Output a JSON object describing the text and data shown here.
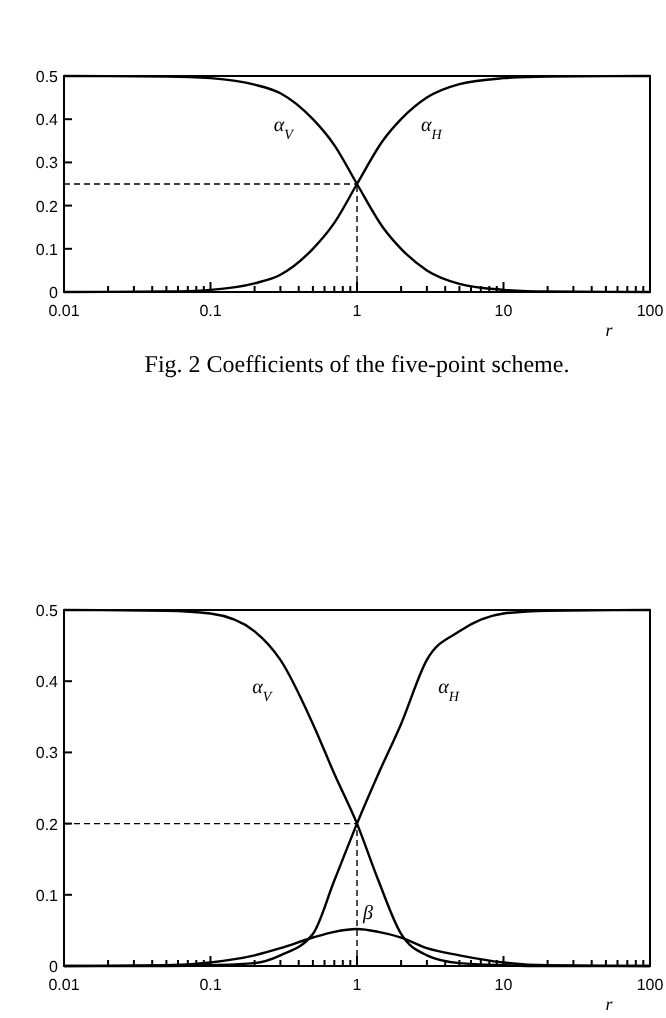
{
  "chart_data": [
    {
      "type": "line",
      "title": "Fig. 2  Coefficients of the five-point scheme.",
      "xlabel": "r",
      "log": "x",
      "xlim": [
        0.01,
        100
      ],
      "ylim": [
        0,
        0.5
      ],
      "xticks": [
        {
          "value": 0.01,
          "label": "0.01"
        },
        {
          "value": 0.02,
          "label": null
        },
        {
          "value": 0.03,
          "label": null
        },
        {
          "value": 0.04,
          "label": null
        },
        {
          "value": 0.05,
          "label": null
        },
        {
          "value": 0.06,
          "label": null
        },
        {
          "value": 0.07,
          "label": null
        },
        {
          "value": 0.08,
          "label": null
        },
        {
          "value": 0.09,
          "label": null
        },
        {
          "value": 0.1,
          "label": "0.1"
        },
        {
          "value": 0.2,
          "label": null
        },
        {
          "value": 0.3,
          "label": null
        },
        {
          "value": 0.4,
          "label": null
        },
        {
          "value": 0.5,
          "label": null
        },
        {
          "value": 0.6,
          "label": null
        },
        {
          "value": 0.7,
          "label": null
        },
        {
          "value": 0.8,
          "label": null
        },
        {
          "value": 0.9,
          "label": null
        },
        {
          "value": 1,
          "label": "1"
        },
        {
          "value": 2,
          "label": null
        },
        {
          "value": 3,
          "label": null
        },
        {
          "value": 4,
          "label": null
        },
        {
          "value": 5,
          "label": null
        },
        {
          "value": 6,
          "label": null
        },
        {
          "value": 7,
          "label": null
        },
        {
          "value": 8,
          "label": null
        },
        {
          "value": 9,
          "label": null
        },
        {
          "value": 10,
          "label": "10"
        },
        {
          "value": 20,
          "label": null
        },
        {
          "value": 30,
          "label": null
        },
        {
          "value": 40,
          "label": null
        },
        {
          "value": 50,
          "label": null
        },
        {
          "value": 60,
          "label": null
        },
        {
          "value": 70,
          "label": null
        },
        {
          "value": 80,
          "label": null
        },
        {
          "value": 90,
          "label": null
        },
        {
          "value": 100,
          "label": "100"
        }
      ],
      "yticks": [
        0,
        0.1,
        0.2,
        0.3,
        0.4,
        0.5
      ],
      "grid": false,
      "line_style": "solid",
      "ref_lines": [
        {
          "axis": "y",
          "value": 0.25,
          "line_style": "dashed"
        },
        {
          "axis": "x",
          "value": 1,
          "line_style": "dashed"
        }
      ],
      "series": [
        {
          "name": "α$_{V}$",
          "color": "#000000",
          "x": [
            0.01,
            0.05,
            0.1,
            0.2,
            0.3,
            0.5,
            0.7,
            1,
            1.5,
            2,
            3,
            5,
            10,
            20,
            100
          ],
          "values": [
            0.5,
            0.499,
            0.495,
            0.48,
            0.46,
            0.4,
            0.34,
            0.25,
            0.15,
            0.1,
            0.05,
            0.019,
            0.005,
            0.001,
            0
          ]
        },
        {
          "name": "α$_{H}$",
          "color": "#000000",
          "x": [
            0.01,
            0.05,
            0.1,
            0.2,
            0.3,
            0.5,
            0.7,
            1,
            1.5,
            2,
            3,
            5,
            10,
            20,
            100
          ],
          "values": [
            0,
            0.001,
            0.005,
            0.02,
            0.04,
            0.1,
            0.16,
            0.25,
            0.35,
            0.4,
            0.45,
            0.481,
            0.495,
            0.499,
            0.5
          ]
        }
      ]
    },
    {
      "type": "line",
      "xlabel": "r",
      "log": "x",
      "xlim": [
        0.01,
        100
      ],
      "ylim": [
        0,
        0.5
      ],
      "xticks": [
        {
          "value": 0.01,
          "label": "0.01"
        },
        {
          "value": 0.02,
          "label": null
        },
        {
          "value": 0.03,
          "label": null
        },
        {
          "value": 0.04,
          "label": null
        },
        {
          "value": 0.05,
          "label": null
        },
        {
          "value": 0.06,
          "label": null
        },
        {
          "value": 0.07,
          "label": null
        },
        {
          "value": 0.08,
          "label": null
        },
        {
          "value": 0.09,
          "label": null
        },
        {
          "value": 0.1,
          "label": "0.1"
        },
        {
          "value": 0.2,
          "label": null
        },
        {
          "value": 0.3,
          "label": null
        },
        {
          "value": 0.4,
          "label": null
        },
        {
          "value": 0.5,
          "label": null
        },
        {
          "value": 0.6,
          "label": null
        },
        {
          "value": 0.7,
          "label": null
        },
        {
          "value": 0.8,
          "label": null
        },
        {
          "value": 0.9,
          "label": null
        },
        {
          "value": 1,
          "label": "1"
        },
        {
          "value": 2,
          "label": null
        },
        {
          "value": 3,
          "label": null
        },
        {
          "value": 4,
          "label": null
        },
        {
          "value": 5,
          "label": null
        },
        {
          "value": 6,
          "label": null
        },
        {
          "value": 7,
          "label": null
        },
        {
          "value": 8,
          "label": null
        },
        {
          "value": 9,
          "label": null
        },
        {
          "value": 10,
          "label": "10"
        },
        {
          "value": 20,
          "label": null
        },
        {
          "value": 30,
          "label": null
        },
        {
          "value": 40,
          "label": null
        },
        {
          "value": 50,
          "label": null
        },
        {
          "value": 60,
          "label": null
        },
        {
          "value": 70,
          "label": null
        },
        {
          "value": 80,
          "label": null
        },
        {
          "value": 90,
          "label": null
        },
        {
          "value": 100,
          "label": "100"
        }
      ],
      "yticks": [
        0,
        0.1,
        0.2,
        0.3,
        0.4,
        0.5
      ],
      "grid": false,
      "line_style": "solid",
      "ref_lines": [
        {
          "axis": "y",
          "value": 0.2,
          "line_style": "dashed"
        },
        {
          "axis": "x",
          "value": 1,
          "line_style": "dashed"
        }
      ],
      "series": [
        {
          "name": "α$_{V}$",
          "color": "#000000",
          "x": [
            0.01,
            0.05,
            0.1,
            0.2,
            0.3,
            0.5,
            0.7,
            1,
            1.4,
            2,
            3,
            5,
            10,
            20,
            100
          ],
          "values": [
            0.5,
            0.499,
            0.495,
            0.47,
            0.43,
            0.34,
            0.27,
            0.2,
            0.12,
            0.045,
            0.015,
            0.004,
            0.001,
            0,
            0
          ]
        },
        {
          "name": "α$_{H}$",
          "color": "#000000",
          "x": [
            0.01,
            0.05,
            0.1,
            0.2,
            0.3,
            0.5,
            0.7,
            1,
            1.4,
            2,
            3,
            5,
            10,
            20,
            100
          ],
          "values": [
            0,
            0,
            0.001,
            0.004,
            0.015,
            0.045,
            0.12,
            0.2,
            0.27,
            0.34,
            0.43,
            0.47,
            0.495,
            0.499,
            0.5
          ]
        },
        {
          "name": "β",
          "color": "#000000",
          "x": [
            0.01,
            0.05,
            0.1,
            0.2,
            0.3,
            0.5,
            0.7,
            1,
            1.4,
            2,
            3,
            5,
            10,
            20,
            100
          ],
          "values": [
            0,
            0.001,
            0.005,
            0.015,
            0.025,
            0.04,
            0.048,
            0.052,
            0.048,
            0.04,
            0.025,
            0.015,
            0.005,
            0.001,
            0
          ]
        }
      ]
    }
  ]
}
